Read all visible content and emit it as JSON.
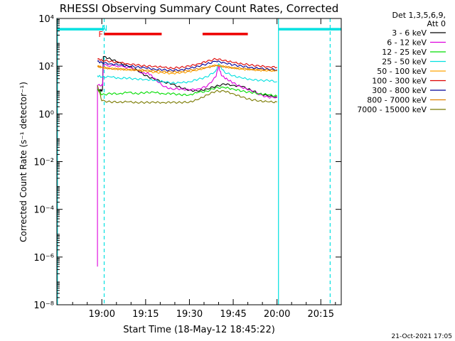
{
  "chart_data": {
    "type": "line",
    "title": "RHESSI Observing Summary Count Rates, Corrected",
    "xlabel": "Start Time (18-May-12 18:45:22)",
    "ylabel": "Corrected Count Rate (s⁻¹ detector⁻¹)",
    "y_scale": "log",
    "ylim": [
      1e-08,
      10000
    ],
    "xlim_minutes": [
      -15.4,
      82.0
    ],
    "x_ticks": [
      {
        "minute": 0,
        "label": "19:00"
      },
      {
        "minute": 15,
        "label": "19:15"
      },
      {
        "minute": 30,
        "label": "19:30"
      },
      {
        "minute": 45,
        "label": "19:45"
      },
      {
        "minute": 60,
        "label": "20:00"
      },
      {
        "minute": 75,
        "label": "20:15"
      }
    ],
    "y_ticks": [
      {
        "exp": 4,
        "label": "10⁴"
      },
      {
        "exp": 2,
        "label": "10²"
      },
      {
        "exp": 0,
        "label": "10⁰"
      },
      {
        "exp": -2,
        "label": "10⁻²"
      },
      {
        "exp": -4,
        "label": "10⁻⁴"
      },
      {
        "exp": -6,
        "label": "10⁻⁶"
      },
      {
        "exp": -8,
        "label": "10⁻⁸"
      }
    ],
    "legend": {
      "header": [
        "Det 1,3,5,6,9,",
        "Att 0"
      ],
      "placement": "right"
    },
    "series": [
      {
        "name": "3 - 6 keV",
        "color": "#000000",
        "points": [
          [
            -1.5,
            1.0
          ],
          [
            -0.5,
            0.98
          ],
          [
            0.2,
            1.0
          ],
          [
            0.5,
            2.4
          ],
          [
            3,
            2.3
          ],
          [
            6,
            2.15
          ],
          [
            9,
            2.0
          ],
          [
            12,
            1.85
          ],
          [
            15,
            1.6
          ],
          [
            18,
            1.45
          ],
          [
            21,
            1.35
          ],
          [
            24,
            1.25
          ],
          [
            27,
            1.1
          ],
          [
            30,
            1.0
          ],
          [
            33,
            0.95
          ],
          [
            36,
            1.05
          ],
          [
            39,
            1.15
          ],
          [
            42,
            1.25
          ],
          [
            45,
            1.2
          ],
          [
            48,
            1.15
          ],
          [
            51,
            1.0
          ],
          [
            54,
            0.85
          ],
          [
            57,
            0.75
          ],
          [
            60,
            0.7
          ]
        ]
      },
      {
        "name": "6 - 12 keV",
        "color": "#dd00dd",
        "points": [
          [
            -1.5,
            -6.4
          ],
          [
            -1.5,
            1.2
          ],
          [
            0.3,
            1.2
          ],
          [
            0.5,
            2.05
          ],
          [
            5,
            2.0
          ],
          [
            10,
            1.95
          ],
          [
            14,
            1.7
          ],
          [
            16,
            1.7
          ],
          [
            18,
            1.5
          ],
          [
            21,
            1.15
          ],
          [
            24,
            1.05
          ],
          [
            27,
            1.05
          ],
          [
            30,
            1.0
          ],
          [
            33,
            1.05
          ],
          [
            36,
            1.15
          ],
          [
            39,
            1.55
          ],
          [
            40,
            2.0
          ],
          [
            41,
            1.6
          ],
          [
            43,
            1.45
          ],
          [
            45,
            1.3
          ],
          [
            48,
            1.1
          ],
          [
            51,
            1.0
          ],
          [
            54,
            0.8
          ],
          [
            57,
            0.7
          ],
          [
            60,
            0.7
          ]
        ]
      },
      {
        "name": "12 - 25 keV",
        "color": "#00dd00",
        "points": [
          [
            -1.5,
            1.05
          ],
          [
            0,
            0.8
          ],
          [
            3,
            0.85
          ],
          [
            6,
            0.85
          ],
          [
            9,
            0.9
          ],
          [
            12,
            0.85
          ],
          [
            15,
            0.9
          ],
          [
            18,
            0.9
          ],
          [
            21,
            0.85
          ],
          [
            24,
            0.85
          ],
          [
            27,
            0.8
          ],
          [
            30,
            0.8
          ],
          [
            33,
            0.9
          ],
          [
            36,
            0.95
          ],
          [
            39,
            1.1
          ],
          [
            42,
            1.1
          ],
          [
            45,
            1.05
          ],
          [
            48,
            0.95
          ],
          [
            51,
            0.9
          ],
          [
            54,
            0.85
          ],
          [
            57,
            0.8
          ],
          [
            60,
            0.75
          ]
        ]
      },
      {
        "name": "25 - 50 keV",
        "color": "#00e0e0",
        "points": [
          [
            -1.5,
            1.6
          ],
          [
            0,
            1.55
          ],
          [
            3,
            1.55
          ],
          [
            6,
            1.5
          ],
          [
            9,
            1.5
          ],
          [
            12,
            1.45
          ],
          [
            15,
            1.45
          ],
          [
            18,
            1.4
          ],
          [
            21,
            1.35
          ],
          [
            24,
            1.3
          ],
          [
            27,
            1.3
          ],
          [
            30,
            1.35
          ],
          [
            33,
            1.45
          ],
          [
            36,
            1.55
          ],
          [
            39,
            1.8
          ],
          [
            40,
            2.1
          ],
          [
            42,
            1.75
          ],
          [
            45,
            1.6
          ],
          [
            48,
            1.5
          ],
          [
            51,
            1.45
          ],
          [
            54,
            1.4
          ],
          [
            57,
            1.4
          ],
          [
            60,
            1.35
          ]
        ]
      },
      {
        "name": "50 - 100 keV",
        "color": "#ffa500",
        "points": [
          [
            -1.5,
            2.0
          ],
          [
            0,
            1.95
          ],
          [
            3,
            1.9
          ],
          [
            6,
            1.88
          ],
          [
            9,
            1.85
          ],
          [
            12,
            1.83
          ],
          [
            15,
            1.8
          ],
          [
            18,
            1.75
          ],
          [
            21,
            1.72
          ],
          [
            24,
            1.7
          ],
          [
            27,
            1.72
          ],
          [
            30,
            1.78
          ],
          [
            33,
            1.85
          ],
          [
            36,
            1.95
          ],
          [
            39,
            2.05
          ],
          [
            42,
            1.98
          ],
          [
            45,
            1.92
          ],
          [
            48,
            1.88
          ],
          [
            51,
            1.85
          ],
          [
            54,
            1.83
          ],
          [
            57,
            1.82
          ],
          [
            60,
            1.8
          ]
        ]
      },
      {
        "name": "100 - 300 keV",
        "color": "#dd0000",
        "points": [
          [
            -1.5,
            2.3
          ],
          [
            0,
            2.25
          ],
          [
            3,
            2.2
          ],
          [
            6,
            2.15
          ],
          [
            9,
            2.1
          ],
          [
            12,
            2.05
          ],
          [
            15,
            2.0
          ],
          [
            18,
            2.0
          ],
          [
            21,
            1.95
          ],
          [
            24,
            1.92
          ],
          [
            27,
            1.95
          ],
          [
            30,
            2.0
          ],
          [
            33,
            2.1
          ],
          [
            36,
            2.2
          ],
          [
            39,
            2.3
          ],
          [
            42,
            2.25
          ],
          [
            45,
            2.15
          ],
          [
            48,
            2.1
          ],
          [
            51,
            2.05
          ],
          [
            54,
            2.0
          ],
          [
            57,
            1.98
          ],
          [
            60,
            1.95
          ]
        ]
      },
      {
        "name": "300 - 800 keV",
        "color": "#000099",
        "points": [
          [
            -1.5,
            2.2
          ],
          [
            0,
            2.15
          ],
          [
            3,
            2.1
          ],
          [
            6,
            2.05
          ],
          [
            9,
            2.0
          ],
          [
            12,
            1.97
          ],
          [
            15,
            1.92
          ],
          [
            18,
            1.88
          ],
          [
            21,
            1.85
          ],
          [
            24,
            1.82
          ],
          [
            27,
            1.85
          ],
          [
            30,
            1.9
          ],
          [
            33,
            2.0
          ],
          [
            36,
            2.1
          ],
          [
            39,
            2.2
          ],
          [
            42,
            2.15
          ],
          [
            45,
            2.05
          ],
          [
            48,
            2.0
          ],
          [
            51,
            1.95
          ],
          [
            54,
            1.9
          ],
          [
            57,
            1.88
          ],
          [
            60,
            1.85
          ]
        ]
      },
      {
        "name": "800 - 7000 keV",
        "color": "#e08000",
        "points": [
          [
            -1.5,
            2.0
          ],
          [
            0,
            1.95
          ],
          [
            3,
            1.9
          ],
          [
            6,
            1.88
          ],
          [
            9,
            1.86
          ],
          [
            12,
            1.84
          ],
          [
            15,
            1.82
          ],
          [
            18,
            1.8
          ],
          [
            21,
            1.78
          ],
          [
            24,
            1.75
          ],
          [
            27,
            1.78
          ],
          [
            30,
            1.82
          ],
          [
            33,
            1.88
          ],
          [
            36,
            1.95
          ],
          [
            39,
            2.02
          ],
          [
            42,
            1.98
          ],
          [
            45,
            1.93
          ],
          [
            48,
            1.9
          ],
          [
            51,
            1.87
          ],
          [
            54,
            1.85
          ],
          [
            57,
            1.84
          ],
          [
            60,
            1.82
          ]
        ]
      },
      {
        "name": "7000 - 15000 keV",
        "color": "#7a7a00",
        "points": [
          [
            -1.5,
            1.2
          ],
          [
            0,
            0.55
          ],
          [
            3,
            0.5
          ],
          [
            6,
            0.5
          ],
          [
            9,
            0.5
          ],
          [
            12,
            0.48
          ],
          [
            15,
            0.48
          ],
          [
            18,
            0.48
          ],
          [
            21,
            0.48
          ],
          [
            24,
            0.48
          ],
          [
            27,
            0.48
          ],
          [
            30,
            0.5
          ],
          [
            33,
            0.6
          ],
          [
            36,
            0.8
          ],
          [
            39,
            0.95
          ],
          [
            42,
            0.95
          ],
          [
            45,
            0.85
          ],
          [
            48,
            0.7
          ],
          [
            51,
            0.6
          ],
          [
            54,
            0.55
          ],
          [
            57,
            0.5
          ],
          [
            60,
            0.5
          ]
        ]
      }
    ],
    "flag_bars": [
      {
        "label": "",
        "color": "#00e0e0",
        "level_exp": 3.55,
        "segments": [
          [
            -15.4,
            0.8
          ],
          [
            60.5,
            82.0
          ]
        ]
      },
      {
        "label": "F",
        "color": "#ee0000",
        "level_exp": 3.35,
        "segments": [
          [
            0.8,
            20.5
          ],
          [
            34.5,
            50.0
          ]
        ]
      }
    ],
    "flag_letters": [
      {
        "text": "F",
        "color": "#ee0000",
        "minute": 0.4,
        "level_exp": 3.35
      },
      {
        "text": "N",
        "color": "#00e0e0",
        "minute": 1.9,
        "level_exp": 3.6
      }
    ],
    "vertical_markers": [
      {
        "minute": 0.8,
        "style": "dashed",
        "color": "#00e0e0"
      },
      {
        "minute": 60.5,
        "style": "solid",
        "color": "#00e0e0"
      },
      {
        "minute": 78.2,
        "style": "dashed",
        "color": "#00e0e0"
      },
      {
        "minute": -15.2,
        "style": "solid",
        "color": "#00e0e0"
      }
    ],
    "stamp": "21-Oct-2021 17:05"
  }
}
